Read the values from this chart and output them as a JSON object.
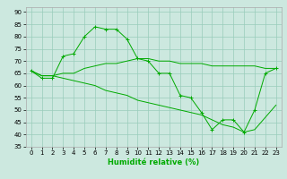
{
  "xlabel": "Humidité relative (%)",
  "background_color": "#cce8df",
  "grid_color": "#99ccbb",
  "line_color": "#00aa00",
  "xlim": [
    -0.5,
    23.5
  ],
  "ylim": [
    35,
    92
  ],
  "yticks": [
    35,
    40,
    45,
    50,
    55,
    60,
    65,
    70,
    75,
    80,
    85,
    90
  ],
  "xticks": [
    0,
    1,
    2,
    3,
    4,
    5,
    6,
    7,
    8,
    9,
    10,
    11,
    12,
    13,
    14,
    15,
    16,
    17,
    18,
    19,
    20,
    21,
    22,
    23
  ],
  "line1_x": [
    0,
    1,
    2,
    3,
    4,
    5,
    6,
    7,
    8,
    9,
    10,
    11,
    12,
    13,
    14,
    15,
    16,
    17,
    18,
    19,
    20,
    21,
    22,
    23
  ],
  "line1_y": [
    66,
    63,
    63,
    72,
    73,
    80,
    84,
    83,
    83,
    79,
    71,
    70,
    65,
    65,
    56,
    55,
    49,
    42,
    46,
    46,
    41,
    50,
    65,
    67
  ],
  "line2_x": [
    0,
    1,
    2,
    3,
    4,
    5,
    6,
    7,
    8,
    9,
    10,
    11,
    12,
    13,
    14,
    15,
    16,
    17,
    18,
    19,
    20,
    21,
    22,
    23
  ],
  "line2_y": [
    66,
    64,
    64,
    65,
    65,
    67,
    68,
    69,
    69,
    70,
    71,
    71,
    70,
    70,
    69,
    69,
    69,
    68,
    68,
    68,
    68,
    68,
    67,
    67
  ],
  "line3_x": [
    0,
    1,
    2,
    3,
    4,
    5,
    6,
    7,
    8,
    9,
    10,
    11,
    12,
    13,
    14,
    15,
    16,
    17,
    18,
    19,
    20,
    21,
    22,
    23
  ],
  "line3_y": [
    66,
    64,
    64,
    63,
    62,
    61,
    60,
    58,
    57,
    56,
    54,
    53,
    52,
    51,
    50,
    49,
    48,
    46,
    44,
    43,
    41,
    42,
    47,
    52
  ]
}
